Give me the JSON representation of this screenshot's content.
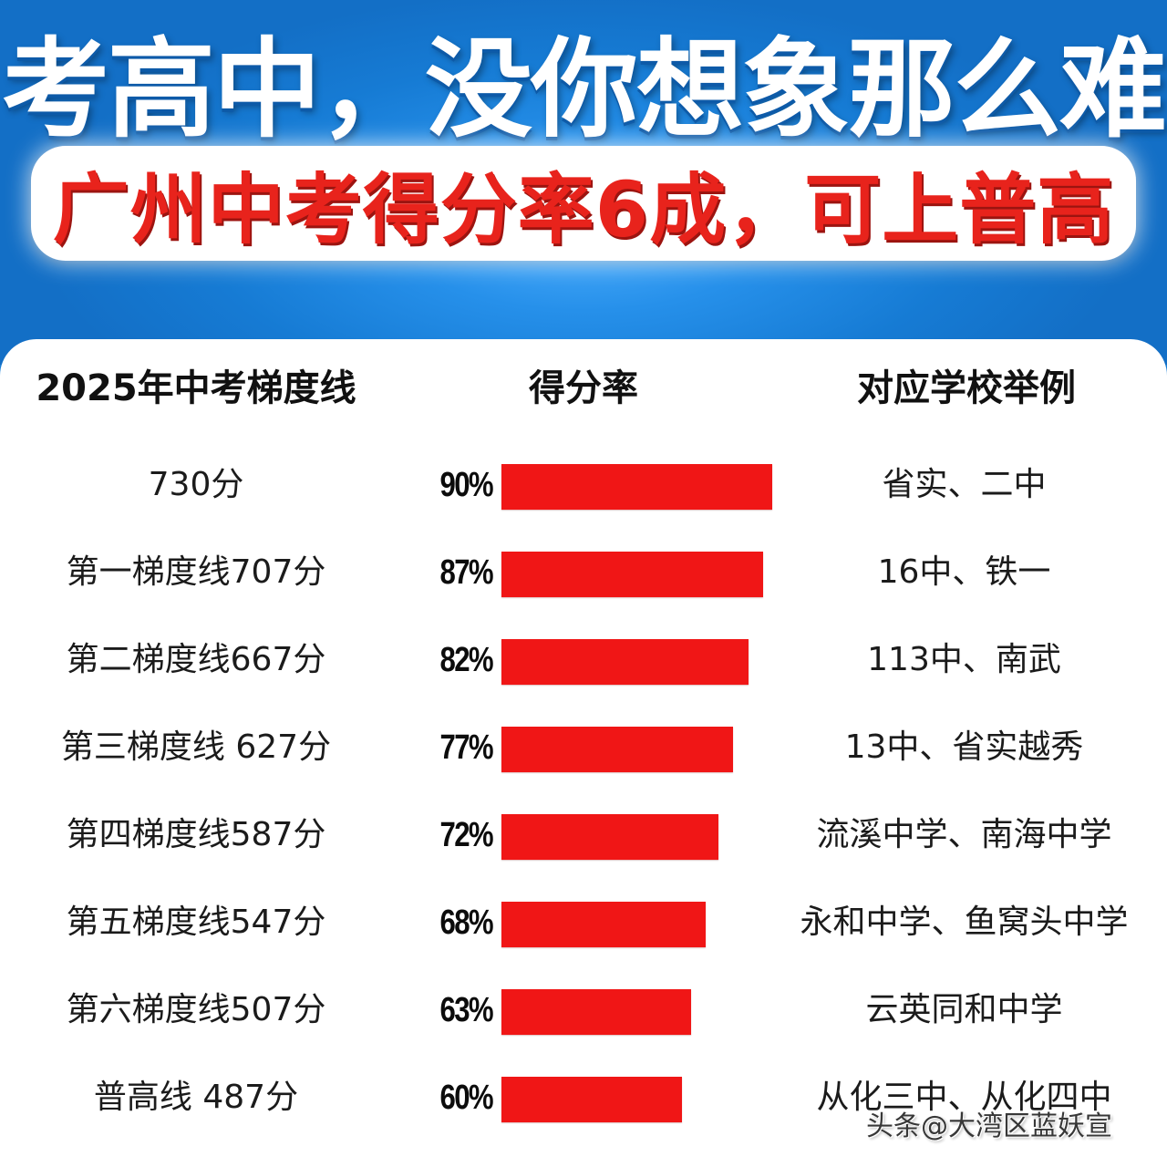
{
  "header": {
    "headline": "考高中，没你想象那么难",
    "subheadline": "广州中考得分率6成，可上普高",
    "colors": {
      "background": "#1a7fd6",
      "subheadline_text": "#e8231c",
      "headline_text": "#ffffff"
    }
  },
  "table": {
    "columns": [
      "2025年中考梯度线",
      "得分率",
      "对应学校举例"
    ],
    "rows": [
      {
        "tier": "730分",
        "rate": "90%",
        "schools": "省实、二中"
      },
      {
        "tier": "第一梯度线707分",
        "rate": "87%",
        "schools": "16中、铁一"
      },
      {
        "tier": "第二梯度线667分",
        "rate": "82%",
        "schools": "113中、南武"
      },
      {
        "tier": "第三梯度线 627分",
        "rate": "77%",
        "schools": "13中、省实越秀"
      },
      {
        "tier": "第四梯度线587分",
        "rate": "72%",
        "schools": "流溪中学、南海中学"
      },
      {
        "tier": "第五梯度线547分",
        "rate": "68%",
        "schools": "永和中学、鱼窝头中学"
      },
      {
        "tier": "第六梯度线507分",
        "rate": "63%",
        "schools": "云英同和中学"
      },
      {
        "tier": "普高线 487分",
        "rate": "60%",
        "schools": "从化三中、从化四中"
      }
    ],
    "bar_color": "#f01616"
  },
  "watermark": "头条@大湾区蓝妖宣",
  "chart_data": {
    "type": "bar",
    "orientation": "horizontal",
    "title": "考高中，没你想象那么难",
    "subtitle": "广州中考得分率6成，可上普高",
    "xlabel": "得分率",
    "ylabel": "2025年中考梯度线",
    "categories": [
      "730分",
      "第一梯度线707分",
      "第二梯度线667分",
      "第三梯度线 627分",
      "第四梯度线587分",
      "第五梯度线547分",
      "第六梯度线507分",
      "普高线 487分"
    ],
    "values": [
      90,
      87,
      82,
      77,
      72,
      68,
      63,
      60
    ],
    "value_labels": [
      "90%",
      "87%",
      "82%",
      "77%",
      "72%",
      "68%",
      "63%",
      "60%"
    ],
    "annotations": [
      "省实、二中",
      "16中、铁一",
      "113中、南武",
      "13中、省实越秀",
      "流溪中学、南海中学",
      "永和中学、鱼窝头中学",
      "云英同和中学",
      "从化三中、从化四中"
    ],
    "grid": false,
    "legend": null
  }
}
